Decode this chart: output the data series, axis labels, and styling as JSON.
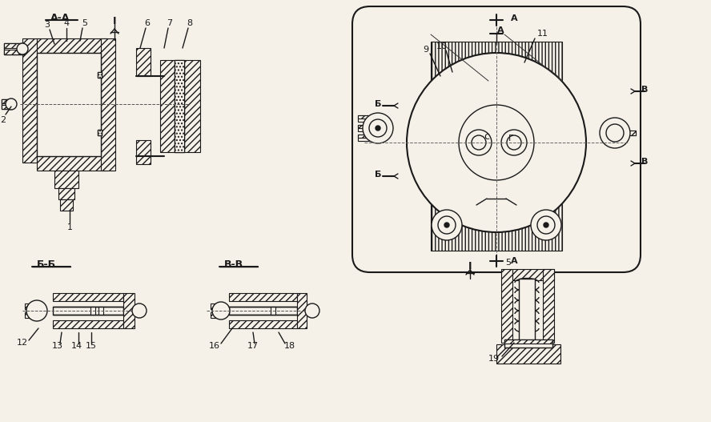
{
  "bg_color": "#f5f0e8",
  "line_color": "#1a1a1a",
  "fig_width": 8.88,
  "fig_height": 5.27,
  "labels": {
    "AA": "А-А",
    "BB": "Б-Б",
    "VV": "В-В",
    "section_I": "I",
    "A": "А",
    "B": "Б",
    "V": "В"
  }
}
